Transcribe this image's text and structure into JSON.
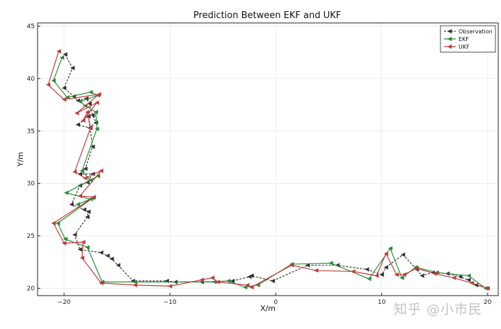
{
  "watermark": "知乎 @小市民",
  "chart_data": {
    "type": "line",
    "title": "Prediction Between EKF and UKF",
    "xlabel": "X/m",
    "ylabel": "Y/m",
    "xlim": [
      -22.5,
      21
    ],
    "ylim": [
      19.3,
      45.3
    ],
    "xticks": [
      -20,
      -10,
      0,
      10,
      20
    ],
    "yticks": [
      20,
      25,
      30,
      35,
      40,
      45
    ],
    "grid": true,
    "legend_position": "top-right",
    "series": [
      {
        "name": "Observation",
        "color": "#333333",
        "dashed": true,
        "x": [
          -19.9,
          -19.2,
          -20.0,
          -19.1,
          -18.7,
          -17.9,
          -17.6,
          -17.3,
          -17.0,
          -17.6,
          -18.7,
          -17.7,
          -17.3,
          -18.0,
          -18.5,
          -17.3,
          -17.8,
          -18.5,
          -19.3,
          -18.1,
          -17.7,
          -17.8,
          -19.0,
          -18.5,
          -16.5,
          -15.9,
          -15.5,
          -14.9,
          -13.5,
          -10.3,
          -9.5,
          -7.0,
          -4.1,
          -2.5,
          -2.3,
          -0.3,
          3.0,
          5.8,
          8.6,
          10.0,
          10.4,
          12.0,
          13.3,
          13.8,
          14.8,
          16.2,
          17.4,
          18.2,
          18.9,
          20.0
        ],
        "y": [
          42.3,
          41.0,
          39.1,
          38.3,
          37.9,
          38.1,
          37.6,
          36.5,
          35.8,
          35.3,
          35.6,
          36.4,
          33.5,
          31.4,
          30.9,
          30.9,
          30.1,
          29.8,
          28.0,
          27.5,
          27.3,
          26.8,
          25.1,
          23.7,
          23.4,
          23.1,
          22.8,
          22.2,
          20.7,
          20.7,
          20.6,
          20.6,
          20.7,
          21.1,
          21.2,
          20.7,
          22.2,
          22.2,
          21.8,
          21.3,
          22.0,
          23.2,
          21.8,
          21.2,
          21.5,
          21.4,
          21.1,
          20.8,
          20.3,
          20.0
        ]
      },
      {
        "name": "EKF",
        "color": "#2a8a3a",
        "dashed": false,
        "x": [
          -20.2,
          -21.0,
          -19.7,
          -17.5,
          -16.8,
          -18.5,
          -18.0,
          -17.0,
          -16.9,
          -18.3,
          -17.5,
          -16.8,
          -19.8,
          -17.5,
          -18.7,
          -17.3,
          -20.6,
          -19.9,
          -17.8,
          -16.4,
          -13.3,
          -5.8,
          -4.5,
          -2.9,
          -1.7,
          1.5,
          5.2,
          8.8,
          10.8,
          11.9,
          13.2,
          15.2,
          18.2,
          19.8
        ],
        "y": [
          42.0,
          39.8,
          38.2,
          38.7,
          38.4,
          37.8,
          37.4,
          36.8,
          35.2,
          31.2,
          30.3,
          30.7,
          29.1,
          28.5,
          28.0,
          28.6,
          26.2,
          24.7,
          23.9,
          20.6,
          20.6,
          20.6,
          20.7,
          20.1,
          20.3,
          22.3,
          22.4,
          20.9,
          23.8,
          21.0,
          22.0,
          21.5,
          21.2,
          20.0
        ]
      },
      {
        "name": "UKF",
        "color": "#c03a3a",
        "dashed": false,
        "x": [
          -20.5,
          -21.5,
          -20.0,
          -16.7,
          -18.8,
          -16.9,
          -18.2,
          -17.8,
          -17.5,
          -19.0,
          -18.0,
          -16.5,
          -18.5,
          -17.2,
          -21.0,
          -20.0,
          -18.2,
          -18.3,
          -16.5,
          -13.3,
          -10.0,
          -7.0,
          -6.0,
          -5.5,
          -2.7,
          -2.3,
          1.5,
          3.8,
          7.3,
          9.5,
          10.4,
          11.4,
          12.1,
          13.3,
          15.0,
          16.8,
          18.5,
          20.0
        ],
        "y": [
          42.6,
          39.4,
          38.0,
          38.5,
          36.7,
          37.7,
          36.0,
          36.8,
          35.3,
          31.1,
          30.5,
          31.2,
          28.8,
          28.7,
          26.2,
          24.3,
          24.4,
          22.9,
          20.5,
          20.3,
          20.2,
          20.8,
          21.0,
          20.6,
          20.3,
          20.1,
          22.2,
          21.7,
          21.6,
          21.2,
          23.3,
          21.3,
          21.3,
          21.9,
          21.4,
          21.0,
          20.5,
          20.0
        ]
      }
    ]
  }
}
